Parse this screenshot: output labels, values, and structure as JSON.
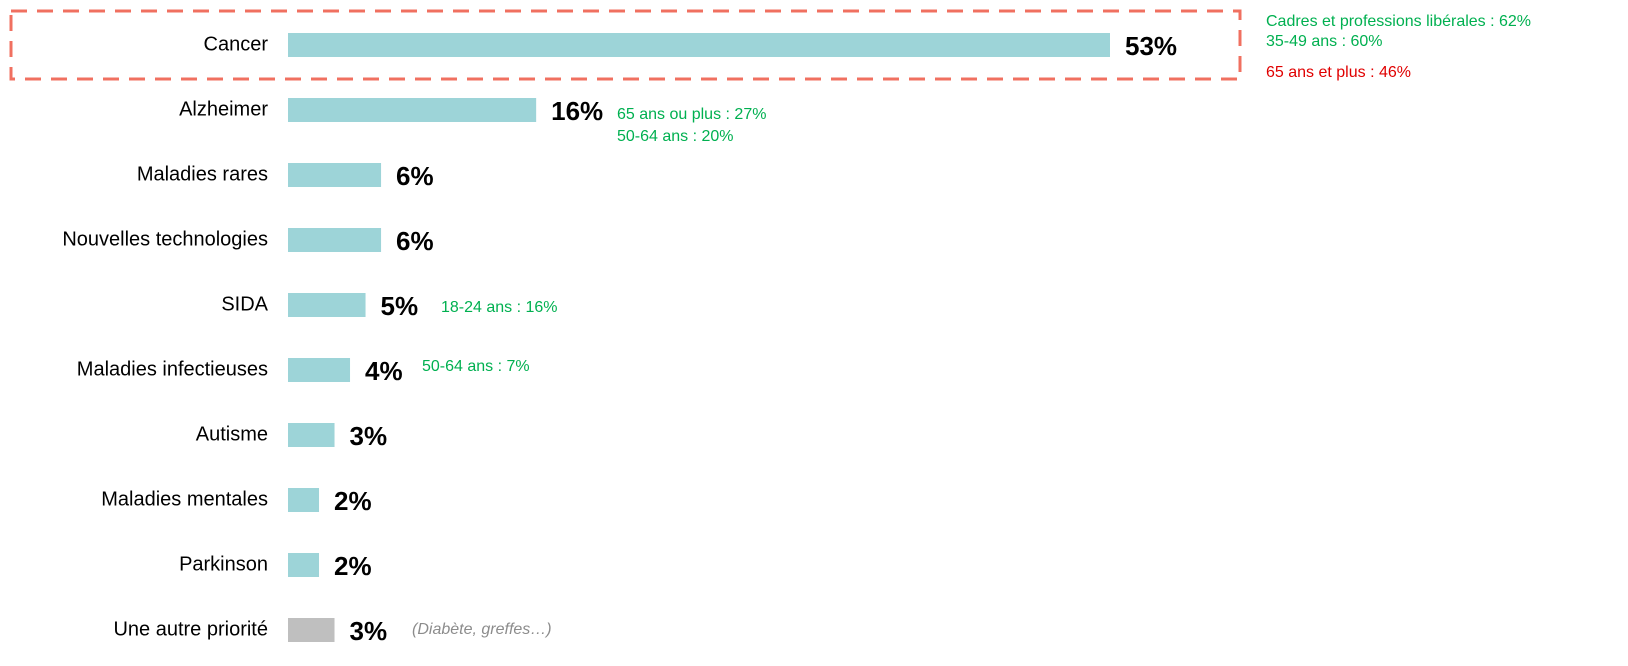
{
  "chart_data": {
    "type": "bar",
    "orientation": "horizontal",
    "categories": [
      "Cancer",
      "Alzheimer",
      "Maladies rares",
      "Nouvelles technologies",
      "SIDA",
      "Maladies infectieuses",
      "Autisme",
      "Maladies mentales",
      "Parkinson",
      "Une autre priorité"
    ],
    "values": [
      53,
      16,
      6,
      6,
      5,
      4,
      3,
      2,
      2,
      3
    ],
    "value_labels": [
      "53%",
      "16%",
      "6%",
      "6%",
      "5%",
      "4%",
      "3%",
      "2%",
      "2%",
      "3%"
    ],
    "colors": [
      "#9dd4d8",
      "#9dd4d8",
      "#9dd4d8",
      "#9dd4d8",
      "#9dd4d8",
      "#9dd4d8",
      "#9dd4d8",
      "#9dd4d8",
      "#9dd4d8",
      "#bfbfbf"
    ],
    "annotations": [
      {
        "text": "Cadres et professions libérales : 62%",
        "color": "#00b050"
      },
      {
        "text": "35-49 ans : 60%",
        "color": "#00b050"
      },
      {
        "text": "65 ans et plus : 46%",
        "color": "#e00000"
      },
      {
        "text": "65 ans ou plus : 27%",
        "color": "#00b050"
      },
      {
        "text": "50-64 ans : 20%",
        "color": "#00b050"
      },
      {
        "text": "18-24 ans : 16%",
        "color": "#00b050"
      },
      {
        "text": "50-64 ans : 7%",
        "color": "#00b050"
      },
      {
        "text": "(Diabète, greffes…)",
        "color": "#8c8c8c"
      }
    ]
  }
}
